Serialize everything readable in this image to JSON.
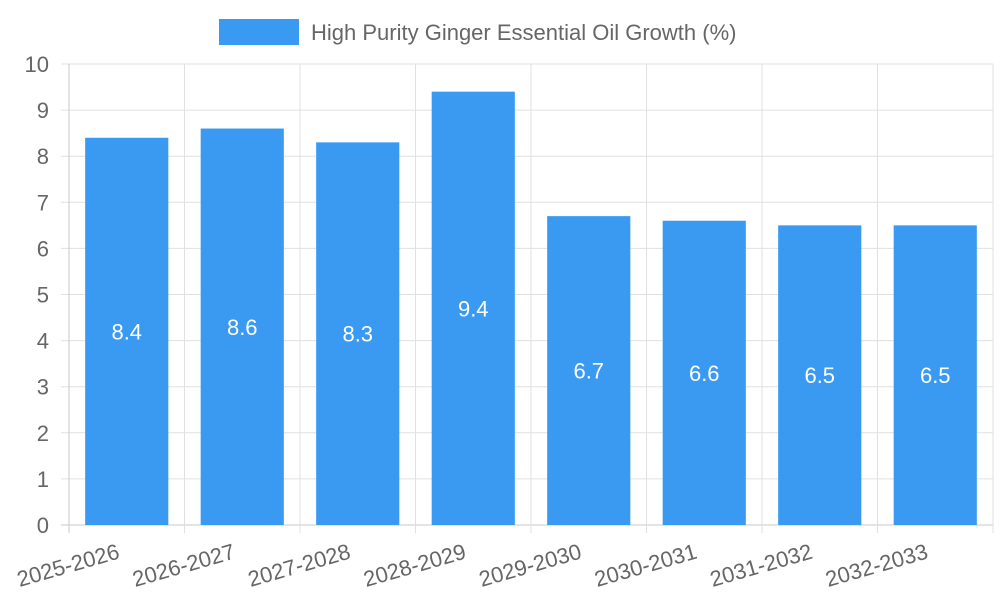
{
  "chart_data": {
    "type": "bar",
    "title": "",
    "xlabel": "",
    "ylabel": "",
    "categories": [
      "2025-2026",
      "2026-2027",
      "2027-2028",
      "2028-2029",
      "2029-2030",
      "2030-2031",
      "2031-2032",
      "2032-2033"
    ],
    "series": [
      {
        "name": "High Purity Ginger Essential Oil Growth (%)",
        "values": [
          8.4,
          8.6,
          8.3,
          9.4,
          6.7,
          6.6,
          6.5,
          6.5
        ],
        "color": "#3a9af1"
      }
    ],
    "ylim": [
      0,
      10
    ],
    "yticks": [
      0,
      1,
      2,
      3,
      4,
      5,
      6,
      7,
      8,
      9,
      10
    ],
    "grid": true,
    "legend_position": "top-center",
    "data_labels": true,
    "colors": {
      "grid": "#e0e0e0",
      "axis": "#c8c8c8",
      "text": "#666666",
      "label": "#ffffff"
    }
  }
}
